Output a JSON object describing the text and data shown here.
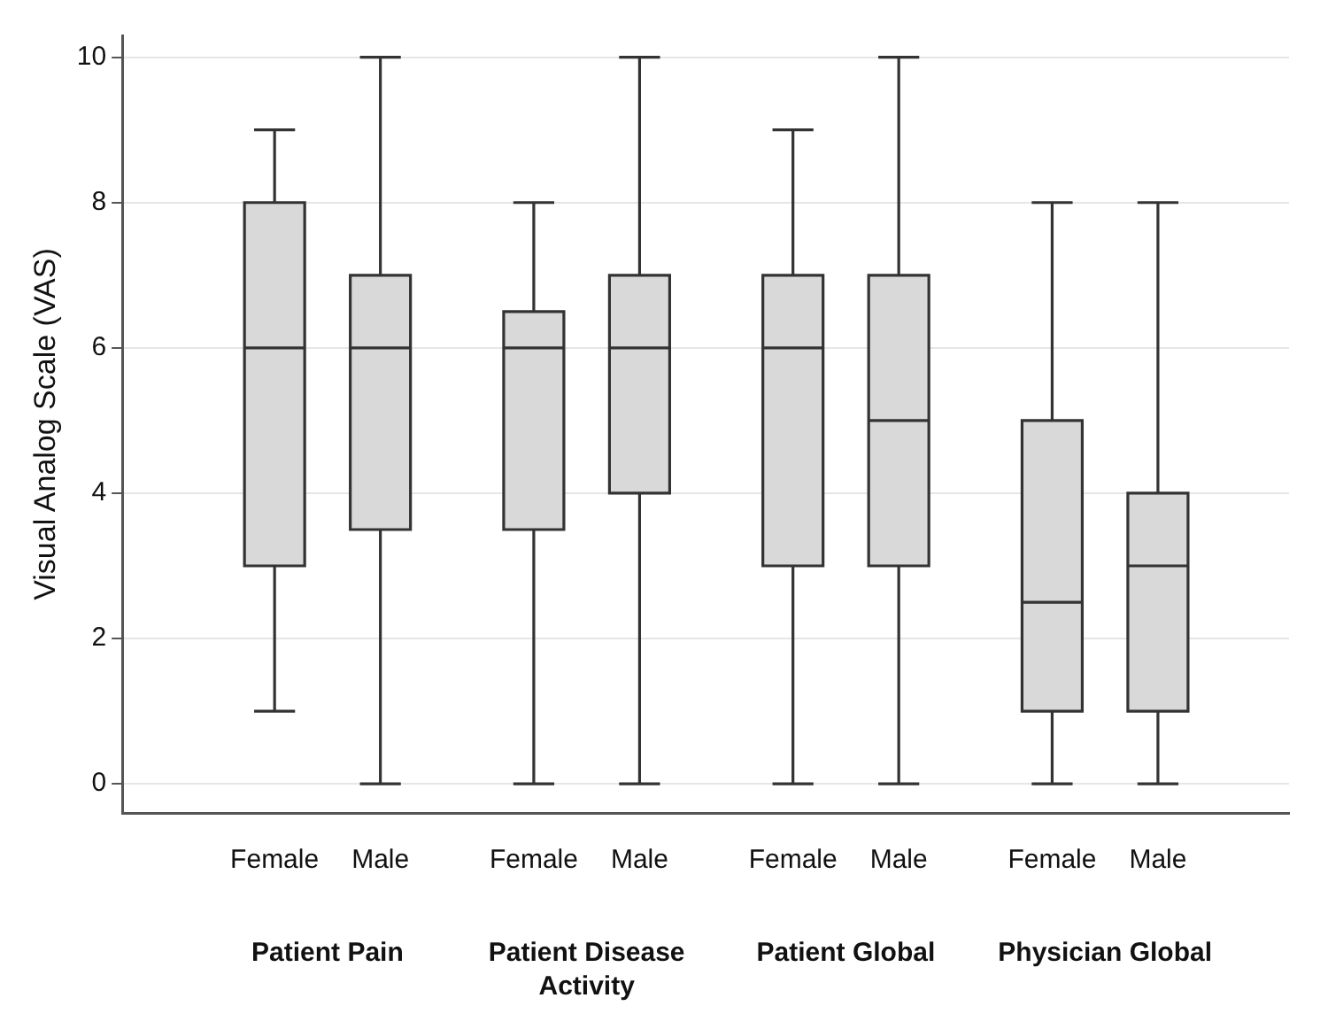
{
  "chart_data": {
    "type": "box",
    "categories": [
      "Female",
      "Male",
      "Female",
      "Male",
      "Female",
      "Male",
      "Female",
      "Male"
    ],
    "boxes": [
      {
        "low": 1,
        "q1": 3,
        "median": 6,
        "q3": 8,
        "high": 9
      },
      {
        "low": 0,
        "q1": 3.5,
        "median": 6,
        "q3": 7,
        "high": 10
      },
      {
        "low": 0,
        "q1": 3.5,
        "median": 6,
        "q3": 6.5,
        "high": 8
      },
      {
        "low": 0,
        "q1": 4,
        "median": 6,
        "q3": 7,
        "high": 10
      },
      {
        "low": 0,
        "q1": 3,
        "median": 6,
        "q3": 7,
        "high": 9
      },
      {
        "low": 0,
        "q1": 3,
        "median": 5,
        "q3": 7,
        "high": 10
      },
      {
        "low": 0,
        "q1": 1,
        "median": 2.5,
        "q3": 5,
        "high": 8
      },
      {
        "low": 0,
        "q1": 1,
        "median": 3,
        "q3": 4,
        "high": 8
      }
    ],
    "color": "#d9d9d9",
    "ylabel": "Visual Analog Scale (VAS)",
    "ylim": [
      -0.4,
      10.3
    ],
    "yticks": [
      0,
      2,
      4,
      6,
      8,
      10
    ],
    "grid": "y",
    "annotations": [
      "Patient Pain",
      "Patient Disease Activity",
      "Patient Global",
      "Physician Global"
    ]
  }
}
